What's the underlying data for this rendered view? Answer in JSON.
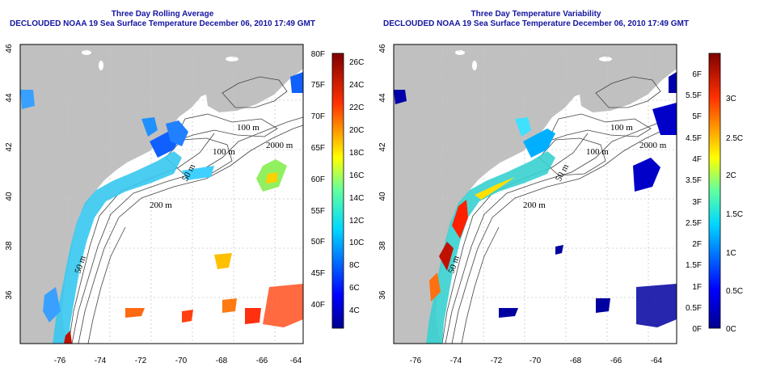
{
  "panels": [
    {
      "title_line1": "Three Day Rolling Average",
      "title_line2": "DECLOUDED NOAA 19 Sea Surface Temperature December 06, 2010 17:49 GMT",
      "contour_labels": [
        "100 m",
        "100 m",
        "2000 m",
        "50 m",
        "200 m",
        "50 m"
      ],
      "colorbar": {
        "left_labels": [
          "80F",
          "75F",
          "70F",
          "65F",
          "60F",
          "55F",
          "50F",
          "45F",
          "40F"
        ],
        "right_labels": [
          "26C",
          "24C",
          "22C",
          "20C",
          "18C",
          "16C",
          "14C",
          "12C",
          "10C",
          "8C",
          "6C",
          "4C"
        ]
      }
    },
    {
      "title_line1": "Three Day Temperature Variability",
      "title_line2": "DECLOUDED NOAA 19 Sea Surface Temperature December 06, 2010 17:49 GMT",
      "contour_labels": [
        "100 m",
        "100 m",
        "2000 m",
        "50 m",
        "200 m",
        "50 m"
      ],
      "colorbar": {
        "left_labels": [
          "6F",
          "5.5F",
          "5F",
          "4.5F",
          "4F",
          "3.5F",
          "3F",
          "2.5F",
          "2F",
          "1.5F",
          "1F",
          "0.5F",
          "0F"
        ],
        "right_labels": [
          "3C",
          "2.5C",
          "2C",
          "1.5C",
          "1C",
          "0.5C",
          "0C"
        ]
      }
    }
  ],
  "axes": {
    "x_ticks": [
      "-76",
      "-74",
      "-72",
      "-70",
      "-68",
      "-66",
      "-64"
    ],
    "y_ticks": [
      "46",
      "44",
      "42",
      "40",
      "38",
      "36"
    ]
  },
  "colors": {
    "land": "#c0c0c0",
    "ocean": "#ffffff",
    "title": "#1414a0",
    "colorbar_top": "#800000",
    "colorbar_bottom": "#00008f"
  }
}
